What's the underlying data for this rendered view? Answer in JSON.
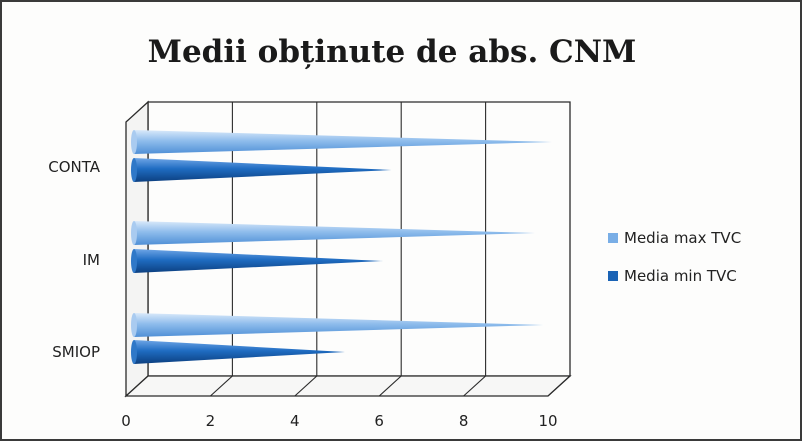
{
  "chart_data": {
    "type": "bar",
    "title": "Medii obținute de abs. CNM",
    "categories": [
      "CONTA",
      "IM",
      "SMIOP"
    ],
    "series": [
      {
        "name": "Media max TVC",
        "values": [
          9.9,
          9.5,
          9.7
        ],
        "color": "#79aee6"
      },
      {
        "name": "Media min TVC",
        "values": [
          6.1,
          5.9,
          5.0
        ],
        "color": "#1a63b5"
      }
    ],
    "x_ticks": [
      "0",
      "2",
      "4",
      "6",
      "8",
      "10"
    ],
    "xlim": [
      0,
      10
    ],
    "grid": true,
    "legend_position": "right",
    "style": "3d-cone"
  }
}
